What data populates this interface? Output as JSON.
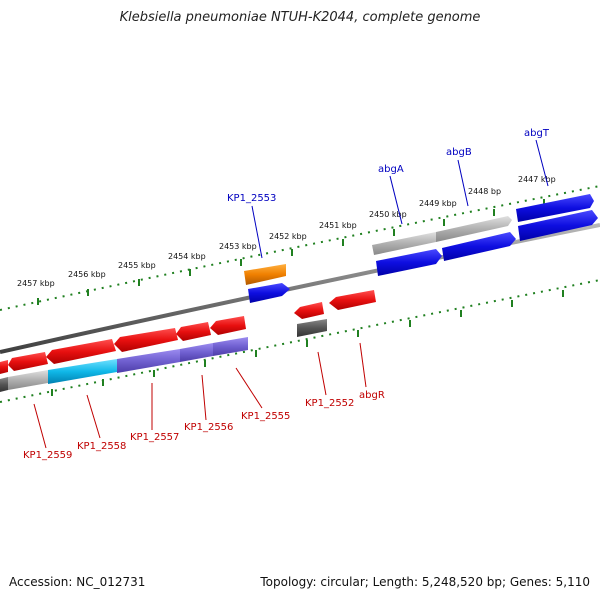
{
  "title": "Klebsiella pneumoniae NTUH-K2044, complete genome",
  "accession_text": "Accession: NC_012731",
  "summary_text": "Topology: circular; Length: 5,248,520 bp; Genes: 5,110",
  "colors": {
    "forward_blue": "#1010e0",
    "reverse_red": "#e01010",
    "gray": "#a8a8a8",
    "dark_gray": "#555555",
    "orange": "#f08000",
    "purple": "#7060d0",
    "cyan": "#10b8e8",
    "tick_green": "#208020",
    "label_blue": "#0000c0",
    "label_red": "#c00000"
  },
  "scale_ticks": [
    "2457 kbp",
    "2456 kbp",
    "2455 kbp",
    "2454 kbp",
    "2453 kbp",
    "2452 kbp",
    "2451 kbp",
    "2450 kbp",
    "2449 kbp",
    "2448 bp",
    "2447 kbp"
  ],
  "forward_labels": [
    "KP1_2553",
    "abgA",
    "abgB",
    "abgT"
  ],
  "reverse_labels": [
    "KP1_2559",
    "KP1_2558",
    "KP1_2557",
    "KP1_2556",
    "KP1_2555",
    "KP1_2552",
    "abgR"
  ]
}
